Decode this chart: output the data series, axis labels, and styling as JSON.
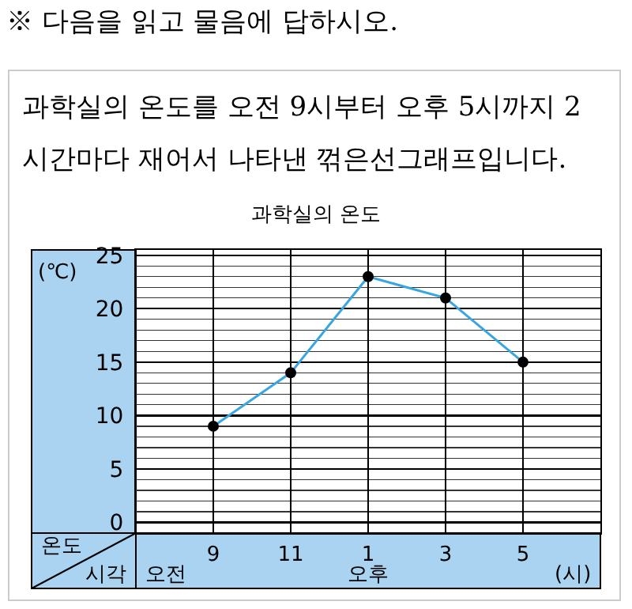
{
  "chart_data": {
    "type": "line",
    "title": "과학실의 온도",
    "subtitle": "과학실의 온도를 오전 9시부터 오후 5시까지 2 시간마다 재어서 나타낸 꺾은선그래프입니다.",
    "ylabel": "(℃)",
    "xlabel": "(시)",
    "annotations": [
      "※ 다음을 읽고 물음에 답하시오.",
      "온도",
      "시각",
      "오전",
      "오후"
    ],
    "categories": [
      "9",
      "11",
      "1",
      "3",
      "5"
    ],
    "series": [
      {
        "color": "#3aa6e0",
        "values": [
          9,
          14,
          23,
          21,
          15
        ]
      }
    ],
    "ylim": [
      -1,
      25.5
    ],
    "yticks": [
      0,
      5,
      10,
      15,
      20,
      25
    ],
    "grid": true,
    "marker": "circle",
    "line_style": "solid"
  }
}
